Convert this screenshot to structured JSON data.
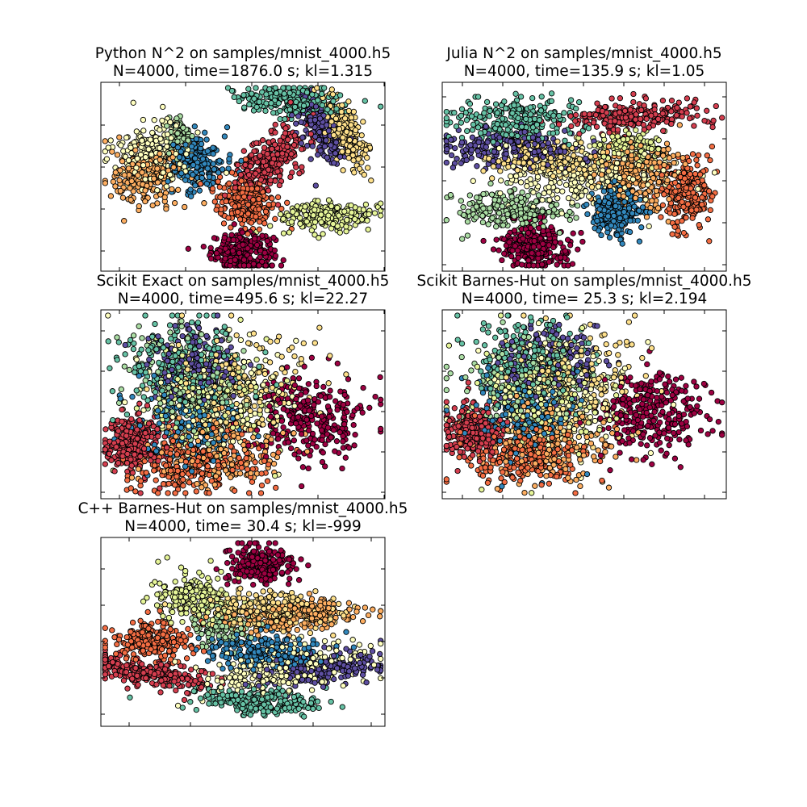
{
  "palette": {
    "0": "#9e0142",
    "1": "#d53e4f",
    "2": "#f46d43",
    "3": "#fdae61",
    "4": "#fee08b",
    "5": "#ffffbf",
    "6": "#e6f598",
    "7": "#abdda4",
    "8": "#66c2a5",
    "9": "#3288bd",
    "10": "#5e4fa2"
  },
  "chart_data": [
    {
      "type": "scatter",
      "title_line1": "Python N^2 on samples/mnist_4000.h5",
      "title_line2": "N=4000, time=1876.0 s; kl=1.315",
      "axes_ticks_labeled": false,
      "grid": false,
      "clusters": [
        {
          "class": "0",
          "x": 0.5,
          "y": 0.1,
          "sx": 0.055,
          "sy": 0.05,
          "n": 260,
          "spread": "blob"
        },
        {
          "class": "1",
          "x": 0.6,
          "y": 0.59,
          "sx": 0.045,
          "sy": 0.11,
          "n": 260,
          "spread": "band",
          "angle": -0.5
        },
        {
          "class": "2",
          "x": 0.51,
          "y": 0.37,
          "sx": 0.055,
          "sy": 0.07,
          "n": 230,
          "spread": "blob"
        },
        {
          "class": "3",
          "x": 0.16,
          "y": 0.49,
          "sx": 0.06,
          "sy": 0.075,
          "n": 220,
          "spread": "blob"
        },
        {
          "class": "4",
          "x": 0.86,
          "y": 0.74,
          "sx": 0.03,
          "sy": 0.1,
          "n": 220,
          "spread": "band",
          "angle": 0.25
        },
        {
          "class": "5",
          "x": 0.19,
          "y": 0.63,
          "sx": 0.07,
          "sy": 0.08,
          "n": 220,
          "spread": "blob"
        },
        {
          "class": "6",
          "x": 0.8,
          "y": 0.29,
          "sx": 0.085,
          "sy": 0.035,
          "n": 230,
          "spread": "blob"
        },
        {
          "class": "7",
          "x": 0.28,
          "y": 0.72,
          "sx": 0.02,
          "sy": 0.06,
          "n": 80,
          "spread": "blob"
        },
        {
          "class": "8",
          "x": 0.67,
          "y": 0.9,
          "sx": 0.1,
          "sy": 0.04,
          "n": 240,
          "spread": "band",
          "angle": -0.15
        },
        {
          "class": "9",
          "x": 0.34,
          "y": 0.58,
          "sx": 0.045,
          "sy": 0.08,
          "n": 200,
          "spread": "blob"
        },
        {
          "class": "10",
          "x": 0.78,
          "y": 0.75,
          "sx": 0.035,
          "sy": 0.09,
          "n": 200,
          "spread": "band",
          "angle": 0.3
        }
      ]
    },
    {
      "type": "scatter",
      "title_line1": "Julia N^2 on samples/mnist_4000.h5",
      "title_line2": "N=4000, time=135.9 s; kl=1.05",
      "axes_ticks_labeled": false,
      "grid": false,
      "clusters": [
        {
          "class": "0",
          "x": 0.33,
          "y": 0.14,
          "sx": 0.06,
          "sy": 0.06,
          "n": 260,
          "spread": "blob"
        },
        {
          "class": "1",
          "x": 0.68,
          "y": 0.82,
          "sx": 0.12,
          "sy": 0.04,
          "n": 230,
          "spread": "band",
          "angle": 0.05
        },
        {
          "class": "2",
          "x": 0.86,
          "y": 0.42,
          "sx": 0.045,
          "sy": 0.09,
          "n": 230,
          "spread": "blob"
        },
        {
          "class": "3",
          "x": 0.68,
          "y": 0.52,
          "sx": 0.07,
          "sy": 0.1,
          "n": 230,
          "spread": "blob"
        },
        {
          "class": "4",
          "x": 0.4,
          "y": 0.58,
          "sx": 0.12,
          "sy": 0.05,
          "n": 220,
          "spread": "band",
          "angle": -0.1
        },
        {
          "class": "5",
          "x": 0.48,
          "y": 0.5,
          "sx": 0.14,
          "sy": 0.07,
          "n": 260,
          "spread": "blob"
        },
        {
          "class": "6",
          "x": 0.66,
          "y": 0.66,
          "sx": 0.08,
          "sy": 0.04,
          "n": 120,
          "spread": "blob"
        },
        {
          "class": "7",
          "x": 0.24,
          "y": 0.32,
          "sx": 0.1,
          "sy": 0.05,
          "n": 220,
          "spread": "blob"
        },
        {
          "class": "8",
          "x": 0.25,
          "y": 0.8,
          "sx": 0.12,
          "sy": 0.06,
          "n": 240,
          "spread": "blob"
        },
        {
          "class": "9",
          "x": 0.61,
          "y": 0.33,
          "sx": 0.05,
          "sy": 0.07,
          "n": 220,
          "spread": "blob"
        },
        {
          "class": "10",
          "x": 0.22,
          "y": 0.65,
          "sx": 0.13,
          "sy": 0.05,
          "n": 210,
          "spread": "band",
          "angle": -0.05
        }
      ]
    },
    {
      "type": "scatter",
      "title_line1": "Scikit Exact on samples/mnist_4000.h5",
      "title_line2": "N=4000, time=495.6 s; kl=22.27",
      "axes_ticks_labeled": false,
      "grid": false,
      "clusters": [
        {
          "class": "0",
          "x": 0.73,
          "y": 0.43,
          "sx": 0.1,
          "sy": 0.12,
          "n": 290,
          "spread": "blob"
        },
        {
          "class": "1",
          "x": 0.12,
          "y": 0.3,
          "sx": 0.05,
          "sy": 0.07,
          "n": 260,
          "spread": "blob"
        },
        {
          "class": "2",
          "x": 0.33,
          "y": 0.17,
          "sx": 0.12,
          "sy": 0.08,
          "n": 240,
          "spread": "blob"
        },
        {
          "class": "3",
          "x": 0.38,
          "y": 0.26,
          "sx": 0.13,
          "sy": 0.1,
          "n": 200,
          "spread": "blob"
        },
        {
          "class": "4",
          "x": 0.48,
          "y": 0.6,
          "sx": 0.12,
          "sy": 0.15,
          "n": 200,
          "spread": "blob"
        },
        {
          "class": "5",
          "x": 0.4,
          "y": 0.55,
          "sx": 0.13,
          "sy": 0.15,
          "n": 200,
          "spread": "blob"
        },
        {
          "class": "6",
          "x": 0.36,
          "y": 0.5,
          "sx": 0.12,
          "sy": 0.15,
          "n": 160,
          "spread": "blob"
        },
        {
          "class": "7",
          "x": 0.3,
          "y": 0.6,
          "sx": 0.1,
          "sy": 0.13,
          "n": 180,
          "spread": "blob"
        },
        {
          "class": "8",
          "x": 0.3,
          "y": 0.7,
          "sx": 0.1,
          "sy": 0.12,
          "n": 240,
          "spread": "blob"
        },
        {
          "class": "9",
          "x": 0.3,
          "y": 0.42,
          "sx": 0.1,
          "sy": 0.12,
          "n": 160,
          "spread": "blob"
        },
        {
          "class": "10",
          "x": 0.34,
          "y": 0.7,
          "sx": 0.08,
          "sy": 0.1,
          "n": 160,
          "spread": "blob"
        }
      ]
    },
    {
      "type": "scatter",
      "title_line1": "Scikit Barnes-Hut on samples/mnist_4000.h5",
      "title_line2": "N=4000, time= 25.3 s; kl=2.194",
      "axes_ticks_labeled": false,
      "grid": false,
      "clusters": [
        {
          "class": "0",
          "x": 0.73,
          "y": 0.45,
          "sx": 0.1,
          "sy": 0.11,
          "n": 290,
          "spread": "blob"
        },
        {
          "class": "1",
          "x": 0.11,
          "y": 0.35,
          "sx": 0.05,
          "sy": 0.07,
          "n": 260,
          "spread": "blob"
        },
        {
          "class": "2",
          "x": 0.3,
          "y": 0.22,
          "sx": 0.11,
          "sy": 0.08,
          "n": 240,
          "spread": "blob"
        },
        {
          "class": "3",
          "x": 0.36,
          "y": 0.28,
          "sx": 0.13,
          "sy": 0.1,
          "n": 200,
          "spread": "blob"
        },
        {
          "class": "4",
          "x": 0.46,
          "y": 0.62,
          "sx": 0.12,
          "sy": 0.15,
          "n": 200,
          "spread": "blob"
        },
        {
          "class": "5",
          "x": 0.4,
          "y": 0.56,
          "sx": 0.13,
          "sy": 0.15,
          "n": 200,
          "spread": "blob"
        },
        {
          "class": "6",
          "x": 0.36,
          "y": 0.52,
          "sx": 0.12,
          "sy": 0.14,
          "n": 160,
          "spread": "blob"
        },
        {
          "class": "7",
          "x": 0.3,
          "y": 0.62,
          "sx": 0.1,
          "sy": 0.13,
          "n": 180,
          "spread": "blob"
        },
        {
          "class": "8",
          "x": 0.3,
          "y": 0.72,
          "sx": 0.1,
          "sy": 0.12,
          "n": 240,
          "spread": "blob"
        },
        {
          "class": "9",
          "x": 0.3,
          "y": 0.44,
          "sx": 0.1,
          "sy": 0.12,
          "n": 160,
          "spread": "blob"
        },
        {
          "class": "10",
          "x": 0.38,
          "y": 0.74,
          "sx": 0.08,
          "sy": 0.1,
          "n": 160,
          "spread": "blob"
        }
      ]
    },
    {
      "type": "scatter",
      "title_line1": "C++ Barnes-Hut on samples/mnist_4000.h5",
      "title_line2": "N=4000, time= 30.4 s; kl=-999",
      "axes_ticks_labeled": false,
      "grid": false,
      "clusters": [
        {
          "class": "0",
          "x": 0.56,
          "y": 0.86,
          "sx": 0.055,
          "sy": 0.05,
          "n": 260,
          "spread": "blob"
        },
        {
          "class": "1",
          "x": 0.17,
          "y": 0.28,
          "sx": 0.12,
          "sy": 0.035,
          "n": 240,
          "spread": "band",
          "angle": -0.25
        },
        {
          "class": "2",
          "x": 0.18,
          "y": 0.45,
          "sx": 0.07,
          "sy": 0.05,
          "n": 220,
          "spread": "blob"
        },
        {
          "class": "3",
          "x": 0.67,
          "y": 0.58,
          "sx": 0.12,
          "sy": 0.04,
          "n": 220,
          "spread": "band",
          "angle": 0.15
        },
        {
          "class": "4",
          "x": 0.59,
          "y": 0.62,
          "sx": 0.13,
          "sy": 0.05,
          "n": 220,
          "spread": "blob"
        },
        {
          "class": "5",
          "x": 0.65,
          "y": 0.3,
          "sx": 0.15,
          "sy": 0.06,
          "n": 260,
          "spread": "band",
          "angle": 0.2
        },
        {
          "class": "6",
          "x": 0.33,
          "y": 0.68,
          "sx": 0.07,
          "sy": 0.07,
          "n": 200,
          "spread": "blob"
        },
        {
          "class": "7",
          "x": 0.43,
          "y": 0.52,
          "sx": 0.05,
          "sy": 0.05,
          "n": 90,
          "spread": "blob"
        },
        {
          "class": "8",
          "x": 0.54,
          "y": 0.13,
          "sx": 0.11,
          "sy": 0.035,
          "n": 230,
          "spread": "band",
          "angle": -0.1
        },
        {
          "class": "9",
          "x": 0.58,
          "y": 0.4,
          "sx": 0.1,
          "sy": 0.045,
          "n": 220,
          "spread": "blob"
        },
        {
          "class": "10",
          "x": 0.78,
          "y": 0.3,
          "sx": 0.11,
          "sy": 0.04,
          "n": 220,
          "spread": "band",
          "angle": 0.2
        }
      ]
    }
  ]
}
